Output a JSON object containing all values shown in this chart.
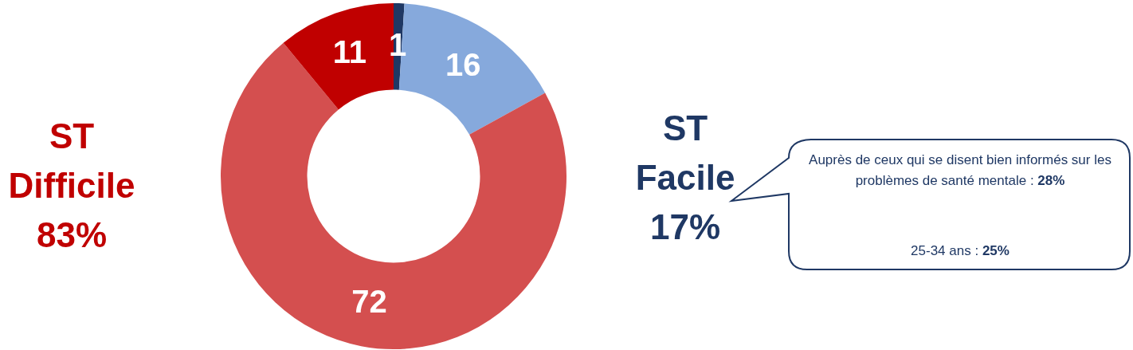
{
  "chart_data": {
    "type": "donut",
    "categories": [
      null,
      null,
      null,
      null
    ],
    "values": [
      1,
      16,
      72,
      11
    ],
    "colors": [
      "#1f3864",
      "#86a9dc",
      "#d44f4f",
      "#c00000"
    ],
    "data_labels": true,
    "legend": false,
    "annotations": [
      "ST\nDifficile\n83%",
      "ST\nFacile\n17%",
      "Auprès de ceux qui se disent bien informés sur les problèmes de santé mentale : 28%",
      "25-34 ans : 25%"
    ]
  }
}
